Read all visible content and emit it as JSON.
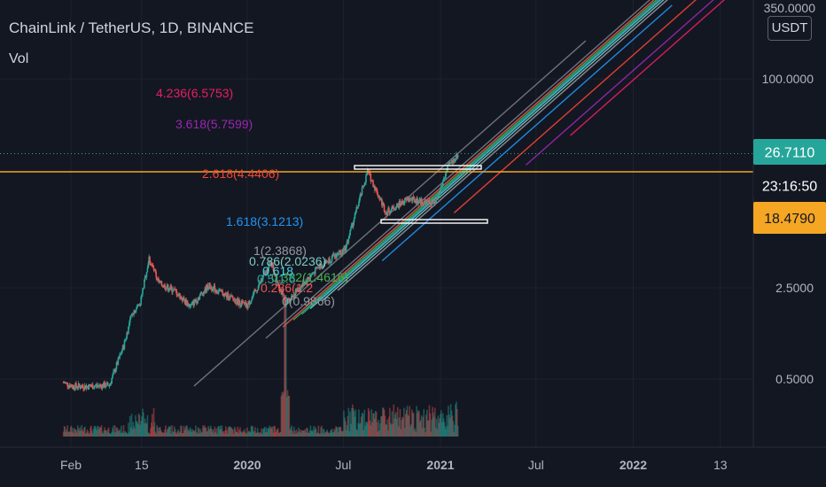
{
  "chart_header": {
    "symbol_line": "ChainLink / TetherUS, 1D, BINANCE",
    "indicator": "Vol"
  },
  "price_scale": {
    "unit": "USDT",
    "top_label": "350.0000",
    "ticks": [
      "100.0000",
      "2.5000",
      "0.5000"
    ]
  },
  "badges": {
    "last_price": "26.7110",
    "countdown": "23:16:50",
    "level": "18.4790"
  },
  "colors": {
    "background": "#131722",
    "candle_up": "#26a69a",
    "candle_down": "#ef5350",
    "orange_line": "#f5a623",
    "last_price_line": "#26a69a",
    "fib_1": "#9598a1",
    "fib_1618": "#2196f3",
    "fib_2618": "#f44336",
    "fib_3618": "#9c27b0",
    "fib_4236": "#e91e63"
  },
  "chart_data": {
    "type": "candlestick",
    "title": "ChainLink / TetherUS, 1D, BINANCE",
    "y_scale": "log",
    "ylim": [
      0.3,
      350
    ],
    "x_ticks": [
      "Feb",
      "15",
      "2020",
      "Jul",
      "2021",
      "Jul",
      "2022",
      "13"
    ],
    "price_path": [
      {
        "date": "2019-01-18",
        "close": 0.47
      },
      {
        "date": "2019-02-05",
        "close": 0.44
      },
      {
        "date": "2019-03-10",
        "close": 0.44
      },
      {
        "date": "2019-04-15",
        "close": 0.45
      },
      {
        "date": "2019-05-12",
        "close": 0.9
      },
      {
        "date": "2019-05-28",
        "close": 1.6
      },
      {
        "date": "2019-06-12",
        "close": 1.9
      },
      {
        "date": "2019-06-29",
        "close": 4.2
      },
      {
        "date": "2019-07-18",
        "close": 2.7
      },
      {
        "date": "2019-08-15",
        "close": 2.4
      },
      {
        "date": "2019-09-15",
        "close": 1.8
      },
      {
        "date": "2019-10-20",
        "close": 2.6
      },
      {
        "date": "2019-11-20",
        "close": 2.2
      },
      {
        "date": "2020-01-01",
        "close": 1.8
      },
      {
        "date": "2020-02-15",
        "close": 3.9
      },
      {
        "date": "2020-03-13",
        "close": 1.9
      },
      {
        "date": "2020-05-15",
        "close": 3.6
      },
      {
        "date": "2020-07-05",
        "close": 5.0
      },
      {
        "date": "2020-08-16",
        "close": 19.5
      },
      {
        "date": "2020-09-20",
        "close": 9.5
      },
      {
        "date": "2020-11-01",
        "close": 12.0
      },
      {
        "date": "2020-12-22",
        "close": 11.0
      },
      {
        "date": "2021-01-15",
        "close": 21.0
      },
      {
        "date": "2021-02-04",
        "close": 26.7
      }
    ],
    "volume_peak": "2020-03-13",
    "fib_channel_levels": [
      {
        "ratio": "0",
        "value": "0.9866",
        "label": "0(0.9866)"
      },
      {
        "ratio": "0.236",
        "value": "",
        "label": "0.236(1.2"
      },
      {
        "ratio": "0.382",
        "value": "1.4616",
        "label": "0.382(1.4616)"
      },
      {
        "ratio": "0.5",
        "value": "",
        "label": "0.5(1.6"
      },
      {
        "ratio": "0.618",
        "value": "",
        "label": "0.618"
      },
      {
        "ratio": "0.786",
        "value": "2.0236",
        "label": "0.786(2.0236)"
      },
      {
        "ratio": "1",
        "value": "2.3868",
        "label": "1(2.3868)"
      },
      {
        "ratio": "1.618",
        "value": "3.1213",
        "label": "1.618(3.1213)"
      },
      {
        "ratio": "2.618",
        "value": "4.4406",
        "label": "2.618(4.4406)"
      },
      {
        "ratio": "3.618",
        "value": "5.7599",
        "label": "3.618(5.7599)"
      },
      {
        "ratio": "4.236",
        "value": "6.5753",
        "label": "4.236(6.5753)"
      }
    ],
    "horizontal_levels": [
      {
        "name": "orange level",
        "value": 18.479
      },
      {
        "name": "last price",
        "value": 26.711
      }
    ]
  }
}
